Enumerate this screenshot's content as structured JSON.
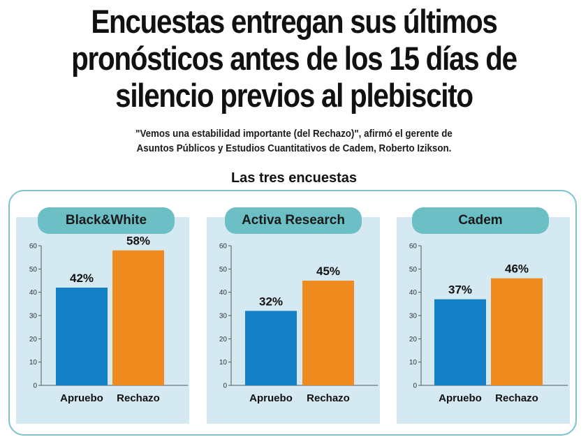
{
  "header": {
    "headline_lines": [
      "Encuestas entregan sus últimos",
      "pronósticos antes de los 15 días de",
      "silencio previos al plebiscito"
    ],
    "subhead_lines": [
      "\"Vemos una estabilidad importante (del Rechazo)\", afirmó el gerente de",
      "Asuntos Públicos y Estudios Cuantitativos de Cadem, Roberto Izikson."
    ],
    "section_title": "Las tres encuestas"
  },
  "colors": {
    "apruebo": "#1380c6",
    "rechazo": "#ef8a1f",
    "panel_bg": "#d4e9f1",
    "tab_bg": "#6cc0c5",
    "frame_border": "#7ec3cc"
  },
  "chart_data": [
    {
      "type": "bar",
      "title": "Black&White",
      "categories": [
        "Apruebo",
        "Rechazo"
      ],
      "values": [
        42,
        58
      ],
      "labels": [
        "42%",
        "58%"
      ],
      "ylim": [
        0,
        60
      ],
      "yticks": [
        0,
        10,
        20,
        30,
        40,
        50,
        60
      ],
      "grid": false
    },
    {
      "type": "bar",
      "title": "Activa Research",
      "categories": [
        "Apruebo",
        "Rechazo"
      ],
      "values": [
        32,
        45
      ],
      "labels": [
        "32%",
        "45%"
      ],
      "ylim": [
        0,
        60
      ],
      "yticks": [
        0,
        10,
        20,
        30,
        40,
        50,
        60
      ],
      "grid": false
    },
    {
      "type": "bar",
      "title": "Cadem",
      "categories": [
        "Apruebo",
        "Rechazo"
      ],
      "values": [
        37,
        46
      ],
      "labels": [
        "37%",
        "46%"
      ],
      "ylim": [
        0,
        60
      ],
      "yticks": [
        0,
        10,
        20,
        30,
        40,
        50,
        60
      ],
      "grid": false
    }
  ]
}
